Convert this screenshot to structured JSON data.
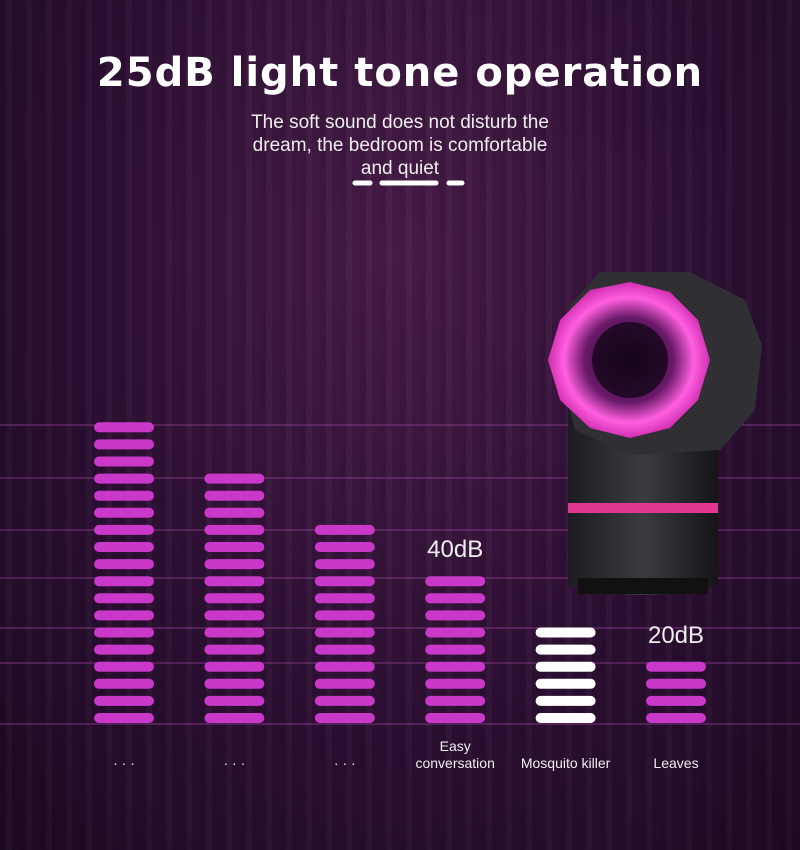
{
  "chart_data": {
    "type": "segment-bar",
    "title": "25dB light tone operation",
    "subtitle": "The soft sound does not disturb the dream, the bedroom is comfortable and quiet",
    "categories": [
      "· · ·",
      "· · ·",
      "· · ·",
      "Easy conversation",
      "Mosquito killer",
      "Leaves"
    ],
    "values": [
      18,
      15,
      12,
      9,
      6,
      4
    ],
    "bar_labels": [
      null,
      null,
      null,
      "40dB",
      null,
      "20dB"
    ],
    "colors": [
      "#c938c9",
      "#c938c9",
      "#c938c9",
      "#c938c9",
      "#ffffff",
      "#c938c9"
    ]
  }
}
